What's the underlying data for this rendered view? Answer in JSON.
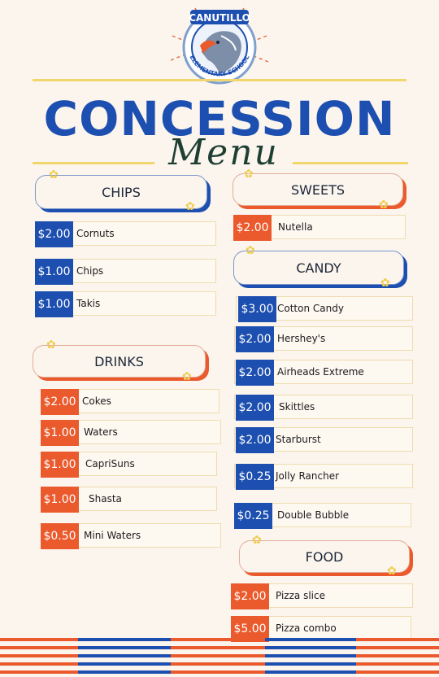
{
  "logo": {
    "top_text": "CANUTILLO",
    "bottom_text": "ELEMENTARY SCHOOL"
  },
  "header": {
    "title": "CONCESSION",
    "subtitle": "Menu"
  },
  "sections": {
    "chips": {
      "title": "CHIPS",
      "items": [
        {
          "price": "$2.00",
          "name": "Cornuts"
        },
        {
          "price": "$1.00",
          "name": "Chips"
        },
        {
          "price": "$1.00",
          "name": "Takis"
        }
      ]
    },
    "drinks": {
      "title": "DRINKS",
      "items": [
        {
          "price": "$2.00",
          "name": "Cokes"
        },
        {
          "price": "$1.00",
          "name": "Waters"
        },
        {
          "price": "$1.00",
          "name": "CapriSuns"
        },
        {
          "price": "$1.00",
          "name": "Shasta"
        },
        {
          "price": "$0.50",
          "name": "Mini Waters"
        }
      ]
    },
    "sweets": {
      "title": "SWEETS",
      "items": [
        {
          "price": "$2.00",
          "name": "Nutella"
        }
      ]
    },
    "candy": {
      "title": "CANDY",
      "items": [
        {
          "price": "$3.00",
          "name": "Cotton Candy"
        },
        {
          "price": "$2.00",
          "name": "Hershey's"
        },
        {
          "price": "$2.00",
          "name": "Airheads Extreme"
        },
        {
          "price": "$2.00",
          "name": "Skittles"
        },
        {
          "price": "$2.00",
          "name": "Starburst"
        },
        {
          "price": "$0.25",
          "name": "Jolly Rancher"
        },
        {
          "price": "$0.25",
          "name": "Double Bubble"
        }
      ]
    },
    "food": {
      "title": "FOOD",
      "items": [
        {
          "price": "$2.00",
          "name": "Pizza slice"
        },
        {
          "price": "$5.00",
          "name": "Pizza combo"
        }
      ]
    }
  },
  "colors": {
    "blue": "#1d4fb0",
    "orange": "#ea5a2d",
    "yellow": "#f1d76b",
    "cream": "#fbf5ee"
  }
}
